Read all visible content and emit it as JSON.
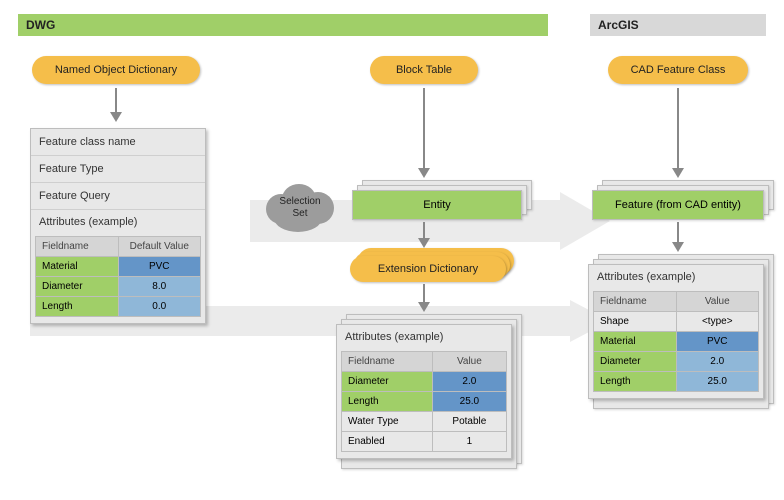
{
  "colors": {
    "header_green": "#a0cf68",
    "header_grey": "#d8d8d8",
    "pill_orange": "#f5be4a",
    "entity_green": "#a0cf68",
    "row_green": "#a0cf68",
    "row_blue_light": "#8fb7d8",
    "row_blue_dark": "#6495c8",
    "panel_bg": "#e8e8e8",
    "big_arrow": "#dcdcdc"
  },
  "headers": {
    "dwg": "DWG",
    "arcgis": "ArcGIS"
  },
  "pills": {
    "named_obj_dict": "Named Object Dictionary",
    "block_table": "Block Table",
    "cad_feature_class": "CAD Feature Class",
    "extension_dictionary": "Extension Dictionary"
  },
  "left_panel": {
    "rows": [
      "Feature class name",
      "Feature Type",
      "Feature Query"
    ],
    "attr_title": "Attributes (example)",
    "columns": [
      "Fieldname",
      "Default Value"
    ],
    "data": [
      {
        "name": "Material",
        "value": "PVC",
        "name_bg": "#a0cf68",
        "value_bg": "#6495c8"
      },
      {
        "name": "Diameter",
        "value": "8.0",
        "name_bg": "#a0cf68",
        "value_bg": "#8fb7d8"
      },
      {
        "name": "Length",
        "value": "0.0",
        "name_bg": "#a0cf68",
        "value_bg": "#8fb7d8"
      }
    ]
  },
  "entity_label": "Entity",
  "selection_set": "Selection\nSet",
  "mid_panel": {
    "attr_title": "Attributes (example)",
    "columns": [
      "Fieldname",
      "Value"
    ],
    "data": [
      {
        "name": "Diameter",
        "value": "2.0",
        "name_bg": "#a0cf68",
        "value_bg": "#6495c8"
      },
      {
        "name": "Length",
        "value": "25.0",
        "name_bg": "#a0cf68",
        "value_bg": "#6495c8"
      },
      {
        "name": "Water Type",
        "value": "Potable",
        "name_bg": "#e8e8e8",
        "value_bg": "#e8e8e8"
      },
      {
        "name": "Enabled",
        "value": "1",
        "name_bg": "#e8e8e8",
        "value_bg": "#e8e8e8"
      }
    ]
  },
  "right_panel": {
    "feature_label": "Feature (from CAD entity)",
    "attr_title": "Attributes (example)",
    "columns": [
      "Fieldname",
      "Value"
    ],
    "data": [
      {
        "name": "Shape",
        "value": "<type>",
        "name_bg": "#e8e8e8",
        "value_bg": "#e8e8e8"
      },
      {
        "name": "Material",
        "value": "PVC",
        "name_bg": "#a0cf68",
        "value_bg": "#6495c8"
      },
      {
        "name": "Diameter",
        "value": "2.0",
        "name_bg": "#a0cf68",
        "value_bg": "#8fb7d8"
      },
      {
        "name": "Length",
        "value": "25.0",
        "name_bg": "#a0cf68",
        "value_bg": "#8fb7d8"
      }
    ]
  }
}
